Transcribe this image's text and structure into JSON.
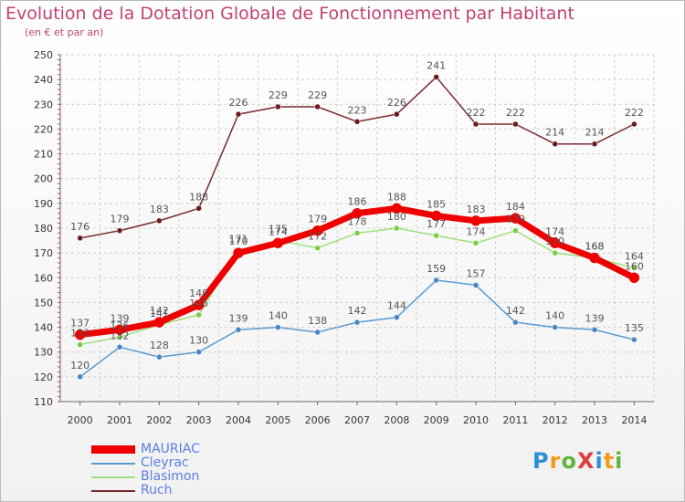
{
  "title": "Evolution de la Dotation Globale de Fonctionnement par Habitant",
  "subtitle": "(en € et par an)",
  "logo": "ProXiti",
  "chart_data": {
    "type": "line",
    "title": "Evolution de la Dotation Globale de Fonctionnement par Habitant",
    "subtitle": "(en € et par an)",
    "x": [
      "2000",
      "2001",
      "2002",
      "2003",
      "2004",
      "2005",
      "2006",
      "2007",
      "2008",
      "2009",
      "2010",
      "2011",
      "2012",
      "2013",
      "2014"
    ],
    "ylim": [
      110,
      250
    ],
    "yticks": [
      110,
      120,
      130,
      140,
      150,
      160,
      170,
      180,
      190,
      200,
      210,
      220,
      230,
      240,
      250
    ],
    "grid": true,
    "legend_position": "bottom-left",
    "series": [
      {
        "name": "Ruch",
        "color": "#7a2a2e",
        "marker": "#6b1a1e",
        "width": 1.5,
        "values": [
          176,
          179,
          183,
          188,
          226,
          229,
          229,
          223,
          226,
          241,
          222,
          222,
          214,
          214,
          222
        ]
      },
      {
        "name": "Cleyrac",
        "color": "#5a9bd0",
        "marker": "#4a86c6",
        "width": 1.5,
        "values": [
          120,
          132,
          128,
          130,
          139,
          140,
          138,
          142,
          144,
          159,
          157,
          142,
          140,
          139,
          135
        ]
      },
      {
        "name": "Blasimon",
        "color": "#9ee07a",
        "marker": "#7ccc48",
        "width": 1.5,
        "values": [
          133,
          136,
          141,
          145,
          171,
          175,
          172,
          178,
          180,
          177,
          174,
          179,
          170,
          168,
          164
        ]
      },
      {
        "name": "MAURIAC",
        "color": "#ee0000",
        "marker": "#ee0000",
        "width": 7,
        "values": [
          137,
          139,
          142,
          149,
          170,
          174,
          179,
          186,
          188,
          185,
          183,
          184,
          174,
          168,
          160
        ]
      }
    ]
  }
}
